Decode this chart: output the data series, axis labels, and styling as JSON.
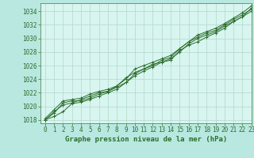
{
  "title": "Graphe pression niveau de la mer (hPa)",
  "bg_color": "#b8e8e0",
  "plot_bg_color": "#d8f5f0",
  "grid_color": "#b0d8cc",
  "line_color": "#2d6e2d",
  "xlim": [
    -0.5,
    23
  ],
  "ylim": [
    1017.5,
    1035.2
  ],
  "xticks": [
    0,
    1,
    2,
    3,
    4,
    5,
    6,
    7,
    8,
    9,
    10,
    11,
    12,
    13,
    14,
    15,
    16,
    17,
    18,
    19,
    20,
    21,
    22,
    23
  ],
  "yticks": [
    1018,
    1020,
    1022,
    1024,
    1026,
    1028,
    1030,
    1032,
    1034
  ],
  "lines": [
    [
      1018.0,
      1018.5,
      1019.2,
      1020.4,
      1020.6,
      1021.0,
      1021.5,
      1022.0,
      1022.5,
      1023.5,
      1024.5,
      1025.2,
      1025.8,
      1026.5,
      1026.8,
      1028.2,
      1029.0,
      1029.5,
      1030.2,
      1030.8,
      1031.5,
      1032.5,
      1033.2,
      1034.5
    ],
    [
      1018.0,
      1019.0,
      1020.5,
      1020.8,
      1020.8,
      1021.2,
      1021.8,
      1022.2,
      1023.0,
      1024.2,
      1025.0,
      1025.5,
      1026.0,
      1026.8,
      1027.2,
      1028.5,
      1029.5,
      1030.2,
      1030.8,
      1031.2,
      1032.0,
      1032.8,
      1033.5,
      1034.3
    ],
    [
      1018.2,
      1019.5,
      1020.8,
      1021.0,
      1021.2,
      1021.8,
      1022.2,
      1022.5,
      1023.0,
      1024.0,
      1025.5,
      1026.0,
      1026.5,
      1027.0,
      1027.5,
      1028.5,
      1029.5,
      1030.5,
      1031.0,
      1031.5,
      1032.2,
      1033.0,
      1033.8,
      1034.8
    ],
    [
      1018.0,
      1019.2,
      1020.2,
      1020.5,
      1021.0,
      1021.5,
      1022.0,
      1022.2,
      1022.8,
      1023.5,
      1024.8,
      1025.5,
      1026.2,
      1026.5,
      1027.0,
      1028.0,
      1029.2,
      1030.0,
      1030.5,
      1031.0,
      1031.8,
      1032.5,
      1033.2,
      1034.0
    ]
  ],
  "tick_fontsize": 5.5,
  "xlabel_fontsize": 6.5,
  "tick_color": "#2d6e2d",
  "spine_color": "#5a8a5a"
}
